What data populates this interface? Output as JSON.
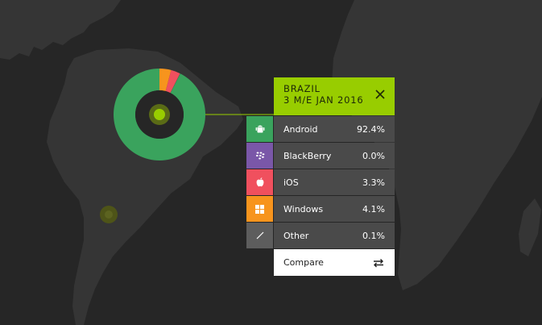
{
  "popup": {
    "country": "BRAZIL",
    "period": "3 M/E JAN 2016",
    "close_icon": "close-icon"
  },
  "rows": [
    {
      "label": "Android",
      "value": "92.4%",
      "color": "#3aa35d",
      "icon": "android-icon"
    },
    {
      "label": "BlackBerry",
      "value": "0.0%",
      "color": "#7a57a8",
      "icon": "blackberry-icon"
    },
    {
      "label": "iOS",
      "value": "3.3%",
      "color": "#f0505e",
      "icon": "apple-icon"
    },
    {
      "label": "Windows",
      "value": "4.1%",
      "color": "#f7941d",
      "icon": "windows-icon"
    },
    {
      "label": "Other",
      "value": "0.1%",
      "color": "#5d5d5d",
      "icon": "slash-icon"
    }
  ],
  "compare": {
    "label": "Compare",
    "icon": "swap-arrows-icon"
  },
  "chart_data": {
    "type": "pie",
    "categories": [
      "Android",
      "BlackBerry",
      "iOS",
      "Windows",
      "Other"
    ],
    "values": [
      92.4,
      0.0,
      3.3,
      4.1,
      0.1
    ],
    "colors": [
      "#3aa35d",
      "#7a57a8",
      "#f0505e",
      "#f7941d",
      "#5d5d5d"
    ]
  },
  "colors": {
    "accent": "#98cd00",
    "background": "#262626",
    "land": "#353535"
  }
}
